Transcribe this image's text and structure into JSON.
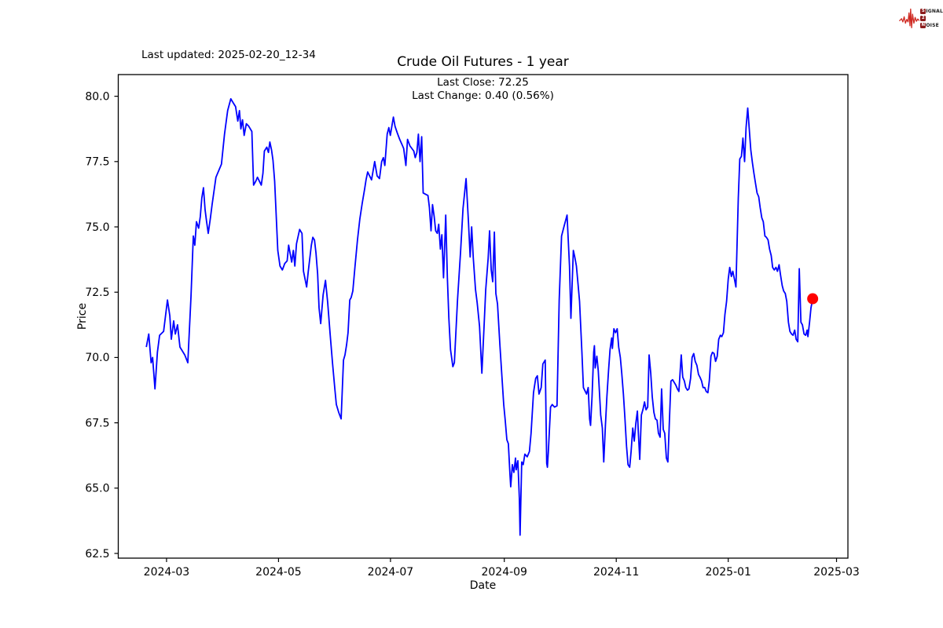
{
  "header": {
    "last_updated": "Last updated: 2025-02-20_12-34",
    "title": "Crude Oil Futures - 1 year",
    "annotation_line1": "Last Close: 72.25",
    "annotation_line2": "Last Change: 0.40 (0.56%)"
  },
  "logo": {
    "waveform_color": "#cf2a22",
    "box_color": "#8b1c1c",
    "rows": [
      {
        "box": "S",
        "rest": "IGNAL"
      },
      {
        "box": "2",
        "rest": ""
      },
      {
        "box": "N",
        "rest": "OISE"
      }
    ]
  },
  "chart_data": {
    "type": "line",
    "title": "Crude Oil Futures - 1 year",
    "xlabel": "Date",
    "ylabel": "Price",
    "grid": false,
    "line_color": "#0000ff",
    "x_unit": "days since 2024-02-19",
    "x_start_date": "2024-02-19",
    "x_tick_labels": [
      "2024-03",
      "2024-05",
      "2024-07",
      "2024-09",
      "2024-11",
      "2025-01",
      "2025-03"
    ],
    "x_tick_days": [
      11,
      72,
      133,
      195,
      256,
      317,
      376
    ],
    "y_ticks": [
      62.5,
      65.0,
      67.5,
      70.0,
      72.5,
      75.0,
      77.5,
      80.0
    ],
    "xlim_days": [
      -15.3,
      382.2
    ],
    "ylim": [
      62.32,
      80.83
    ],
    "last_close": 72.25,
    "last_change": "0.40 (0.56%)",
    "last_point": {
      "day": 363,
      "value": 72.25,
      "color": "#ff0000"
    },
    "points": [
      [
        0,
        70.4
      ],
      [
        1.3,
        70.9
      ],
      [
        2.6,
        69.8
      ],
      [
        3.4,
        70.0
      ],
      [
        4.7,
        68.8
      ],
      [
        6,
        70.2
      ],
      [
        7.2,
        70.85
      ],
      [
        9.4,
        71.0
      ],
      [
        11.5,
        72.2
      ],
      [
        12.8,
        71.6
      ],
      [
        13.6,
        70.7
      ],
      [
        14.9,
        71.4
      ],
      [
        15.8,
        70.9
      ],
      [
        17,
        71.25
      ],
      [
        18.3,
        70.4
      ],
      [
        20.9,
        70.1
      ],
      [
        22.6,
        69.8
      ],
      [
        24.3,
        72.3
      ],
      [
        25.6,
        74.65
      ],
      [
        26.4,
        74.3
      ],
      [
        27.3,
        75.2
      ],
      [
        28.5,
        74.95
      ],
      [
        29.4,
        75.4
      ],
      [
        30.2,
        76.1
      ],
      [
        31.1,
        76.5
      ],
      [
        32,
        75.65
      ],
      [
        32.8,
        75.2
      ],
      [
        33.7,
        74.75
      ],
      [
        34.9,
        75.35
      ],
      [
        35.8,
        75.85
      ],
      [
        37.9,
        76.9
      ],
      [
        40.9,
        77.4
      ],
      [
        42.6,
        78.55
      ],
      [
        44.3,
        79.45
      ],
      [
        46,
        79.9
      ],
      [
        47.3,
        79.75
      ],
      [
        48.6,
        79.6
      ],
      [
        49.8,
        79.05
      ],
      [
        50.7,
        79.45
      ],
      [
        51.5,
        78.75
      ],
      [
        52.4,
        79.1
      ],
      [
        53.3,
        78.5
      ],
      [
        54.5,
        78.95
      ],
      [
        55.8,
        78.85
      ],
      [
        57.5,
        78.65
      ],
      [
        58.4,
        76.6
      ],
      [
        59.6,
        76.75
      ],
      [
        60.5,
        76.9
      ],
      [
        62.6,
        76.6
      ],
      [
        63.5,
        77.05
      ],
      [
        64.3,
        77.9
      ],
      [
        65.6,
        78.05
      ],
      [
        66.5,
        77.85
      ],
      [
        67.3,
        78.25
      ],
      [
        68.2,
        77.95
      ],
      [
        69,
        77.55
      ],
      [
        69.9,
        76.75
      ],
      [
        71.6,
        74.1
      ],
      [
        72.8,
        73.5
      ],
      [
        74.1,
        73.35
      ],
      [
        75.4,
        73.6
      ],
      [
        76.7,
        73.7
      ],
      [
        77.5,
        74.3
      ],
      [
        79.2,
        73.65
      ],
      [
        80.1,
        74.1
      ],
      [
        80.9,
        73.5
      ],
      [
        81.8,
        74.35
      ],
      [
        83.5,
        74.9
      ],
      [
        84.8,
        74.75
      ],
      [
        85.6,
        73.3
      ],
      [
        87.3,
        72.7
      ],
      [
        88.2,
        73.3
      ],
      [
        89.9,
        74.3
      ],
      [
        90.7,
        74.6
      ],
      [
        91.6,
        74.5
      ],
      [
        92.4,
        74.0
      ],
      [
        93.3,
        73.2
      ],
      [
        94.1,
        71.9
      ],
      [
        95,
        71.3
      ],
      [
        96.3,
        72.4
      ],
      [
        97.6,
        72.95
      ],
      [
        98.8,
        72.1
      ],
      [
        100.1,
        70.9
      ],
      [
        101.4,
        69.8
      ],
      [
        102.7,
        68.8
      ],
      [
        103.5,
        68.2
      ],
      [
        104.8,
        67.9
      ],
      [
        106.1,
        67.65
      ],
      [
        107.4,
        69.9
      ],
      [
        108.2,
        70.1
      ],
      [
        109.1,
        70.5
      ],
      [
        109.9,
        70.95
      ],
      [
        110.8,
        72.2
      ],
      [
        111.6,
        72.3
      ],
      [
        112.5,
        72.55
      ],
      [
        113.7,
        73.5
      ],
      [
        115,
        74.5
      ],
      [
        116.3,
        75.3
      ],
      [
        117.6,
        75.9
      ],
      [
        118.9,
        76.45
      ],
      [
        119.7,
        76.8
      ],
      [
        120.6,
        77.1
      ],
      [
        122.7,
        76.8
      ],
      [
        124.4,
        77.5
      ],
      [
        125.7,
        76.95
      ],
      [
        127,
        76.85
      ],
      [
        128.2,
        77.5
      ],
      [
        129.1,
        77.65
      ],
      [
        129.9,
        77.35
      ],
      [
        131.2,
        78.55
      ],
      [
        132.1,
        78.8
      ],
      [
        132.9,
        78.5
      ],
      [
        134.6,
        79.2
      ],
      [
        135.5,
        78.85
      ],
      [
        136.7,
        78.6
      ],
      [
        138,
        78.35
      ],
      [
        139.3,
        78.15
      ],
      [
        140.2,
        78.0
      ],
      [
        141.4,
        77.35
      ],
      [
        142.3,
        78.35
      ],
      [
        143.6,
        78.1
      ],
      [
        145.7,
        77.9
      ],
      [
        146.5,
        77.65
      ],
      [
        147.4,
        77.85
      ],
      [
        148.2,
        78.55
      ],
      [
        149.1,
        77.5
      ],
      [
        150,
        78.45
      ],
      [
        150.8,
        76.3
      ],
      [
        153.4,
        76.2
      ],
      [
        154.2,
        75.75
      ],
      [
        155.1,
        74.85
      ],
      [
        155.9,
        75.85
      ],
      [
        156.8,
        75.4
      ],
      [
        157.6,
        74.85
      ],
      [
        158.5,
        74.75
      ],
      [
        159.3,
        75.1
      ],
      [
        160.2,
        74.15
      ],
      [
        161,
        74.7
      ],
      [
        161.9,
        73.05
      ],
      [
        162.7,
        74.65
      ],
      [
        163.1,
        75.45
      ],
      [
        164,
        73.05
      ],
      [
        164.8,
        71.5
      ],
      [
        165.7,
        70.3
      ],
      [
        167,
        69.65
      ],
      [
        167.8,
        69.8
      ],
      [
        169.5,
        72.2
      ],
      [
        171.2,
        74.05
      ],
      [
        172.5,
        75.7
      ],
      [
        174.2,
        76.85
      ],
      [
        175.5,
        75.15
      ],
      [
        176.4,
        73.85
      ],
      [
        177.2,
        75.0
      ],
      [
        178.1,
        73.8
      ],
      [
        179.3,
        72.6
      ],
      [
        180.2,
        72.1
      ],
      [
        181.5,
        71.2
      ],
      [
        182.8,
        69.4
      ],
      [
        184,
        71.2
      ],
      [
        184.9,
        72.6
      ],
      [
        186.2,
        73.8
      ],
      [
        187,
        74.85
      ],
      [
        187.9,
        73.35
      ],
      [
        188.7,
        72.9
      ],
      [
        189.6,
        74.8
      ],
      [
        190.4,
        72.45
      ],
      [
        191.3,
        72.05
      ],
      [
        192.6,
        70.5
      ],
      [
        193.4,
        69.6
      ],
      [
        194.7,
        68.2
      ],
      [
        195.5,
        67.6
      ],
      [
        196.4,
        66.85
      ],
      [
        197.2,
        66.7
      ],
      [
        198.1,
        65.5
      ],
      [
        198.5,
        65.05
      ],
      [
        199.4,
        65.9
      ],
      [
        200.2,
        65.6
      ],
      [
        201.1,
        66.15
      ],
      [
        201.5,
        65.7
      ],
      [
        202.4,
        66.05
      ],
      [
        203.2,
        64.6
      ],
      [
        203.6,
        63.2
      ],
      [
        204.5,
        66.0
      ],
      [
        205.3,
        65.9
      ],
      [
        206.2,
        66.3
      ],
      [
        207.5,
        66.2
      ],
      [
        208.7,
        66.4
      ],
      [
        209.6,
        67.1
      ],
      [
        210.9,
        68.65
      ],
      [
        212.1,
        69.2
      ],
      [
        213,
        69.3
      ],
      [
        213.9,
        68.6
      ],
      [
        215.1,
        68.85
      ],
      [
        216,
        69.75
      ],
      [
        217.3,
        69.9
      ],
      [
        218.1,
        65.95
      ],
      [
        218.5,
        65.8
      ],
      [
        219,
        66.4
      ],
      [
        220.2,
        68.1
      ],
      [
        221.1,
        68.2
      ],
      [
        222.4,
        68.1
      ],
      [
        223.7,
        68.15
      ],
      [
        224.9,
        72.2
      ],
      [
        226.2,
        74.65
      ],
      [
        227.5,
        75.0
      ],
      [
        229.2,
        75.45
      ],
      [
        230.5,
        73.5
      ],
      [
        231.3,
        71.5
      ],
      [
        232.6,
        74.1
      ],
      [
        233.4,
        73.85
      ],
      [
        234.3,
        73.5
      ],
      [
        235.2,
        72.8
      ],
      [
        236,
        72.15
      ],
      [
        237.3,
        70.2
      ],
      [
        238.1,
        68.85
      ],
      [
        239.8,
        68.6
      ],
      [
        240.7,
        68.85
      ],
      [
        241.5,
        67.65
      ],
      [
        242,
        67.4
      ],
      [
        242.8,
        68.5
      ],
      [
        243.7,
        70.2
      ],
      [
        244.1,
        70.45
      ],
      [
        244.5,
        69.6
      ],
      [
        245.4,
        70.05
      ],
      [
        246.2,
        69.5
      ],
      [
        246.7,
        68.85
      ],
      [
        247.5,
        67.8
      ],
      [
        248.4,
        67.3
      ],
      [
        249.2,
        66.0
      ],
      [
        250.1,
        67.4
      ],
      [
        250.9,
        68.5
      ],
      [
        251.8,
        69.5
      ],
      [
        252.6,
        70.3
      ],
      [
        253.5,
        70.75
      ],
      [
        253.9,
        70.35
      ],
      [
        254.7,
        71.1
      ],
      [
        255.6,
        70.95
      ],
      [
        256.5,
        71.1
      ],
      [
        257.3,
        70.4
      ],
      [
        258.2,
        70.0
      ],
      [
        259,
        69.4
      ],
      [
        259.9,
        68.6
      ],
      [
        260.7,
        67.7
      ],
      [
        261.6,
        66.6
      ],
      [
        262.4,
        65.9
      ],
      [
        263.3,
        65.8
      ],
      [
        264.1,
        66.4
      ],
      [
        265,
        67.3
      ],
      [
        265.8,
        66.8
      ],
      [
        266.7,
        67.5
      ],
      [
        267.5,
        67.95
      ],
      [
        268,
        67.2
      ],
      [
        268.8,
        66.1
      ],
      [
        269.7,
        67.8
      ],
      [
        270.5,
        68.0
      ],
      [
        271.4,
        68.3
      ],
      [
        272.2,
        68.0
      ],
      [
        273.1,
        68.1
      ],
      [
        273.9,
        70.1
      ],
      [
        274.8,
        69.4
      ],
      [
        275.6,
        68.5
      ],
      [
        276.5,
        67.9
      ],
      [
        277.3,
        67.65
      ],
      [
        278.2,
        67.6
      ],
      [
        279,
        67.1
      ],
      [
        279.9,
        66.95
      ],
      [
        280.7,
        68.8
      ],
      [
        281.6,
        67.25
      ],
      [
        282.4,
        67.1
      ],
      [
        283.3,
        66.15
      ],
      [
        284.1,
        66.0
      ],
      [
        285,
        67.7
      ],
      [
        285.8,
        69.1
      ],
      [
        286.7,
        69.15
      ],
      [
        288.4,
        68.95
      ],
      [
        289.3,
        68.8
      ],
      [
        290.1,
        68.7
      ],
      [
        291.4,
        70.1
      ],
      [
        292.2,
        69.25
      ],
      [
        293.1,
        69.1
      ],
      [
        293.9,
        68.85
      ],
      [
        294.8,
        68.75
      ],
      [
        295.6,
        68.8
      ],
      [
        296.5,
        69.2
      ],
      [
        297.3,
        70.0
      ],
      [
        298.2,
        70.15
      ],
      [
        299,
        69.85
      ],
      [
        299.9,
        69.7
      ],
      [
        300.8,
        69.35
      ],
      [
        301.6,
        69.25
      ],
      [
        302.5,
        69.1
      ],
      [
        303.3,
        68.85
      ],
      [
        304.2,
        68.85
      ],
      [
        305,
        68.7
      ],
      [
        305.9,
        68.65
      ],
      [
        306.7,
        69.1
      ],
      [
        307.6,
        70.05
      ],
      [
        308.4,
        70.2
      ],
      [
        309.3,
        70.15
      ],
      [
        310.1,
        69.85
      ],
      [
        311,
        70.05
      ],
      [
        311.8,
        70.7
      ],
      [
        312.7,
        70.85
      ],
      [
        313.5,
        70.8
      ],
      [
        314.4,
        70.95
      ],
      [
        315.2,
        71.65
      ],
      [
        316.1,
        72.15
      ],
      [
        317,
        73.0
      ],
      [
        317.8,
        73.45
      ],
      [
        318.7,
        73.1
      ],
      [
        319.5,
        73.3
      ],
      [
        320.4,
        73.0
      ],
      [
        321.2,
        72.7
      ],
      [
        322.5,
        76.1
      ],
      [
        323.3,
        77.6
      ],
      [
        324.2,
        77.7
      ],
      [
        325,
        78.4
      ],
      [
        325.9,
        77.5
      ],
      [
        326.7,
        78.8
      ],
      [
        327.6,
        79.55
      ],
      [
        329.3,
        77.95
      ],
      [
        330.2,
        77.45
      ],
      [
        331,
        77.05
      ],
      [
        331.9,
        76.65
      ],
      [
        332.7,
        76.3
      ],
      [
        333.6,
        76.15
      ],
      [
        334.4,
        75.75
      ],
      [
        335.3,
        75.35
      ],
      [
        336.1,
        75.2
      ],
      [
        337,
        74.65
      ],
      [
        337.8,
        74.6
      ],
      [
        338.7,
        74.5
      ],
      [
        339.5,
        74.15
      ],
      [
        340.4,
        73.9
      ],
      [
        341.2,
        73.45
      ],
      [
        342.1,
        73.35
      ],
      [
        343,
        73.45
      ],
      [
        343.8,
        73.3
      ],
      [
        344.7,
        73.55
      ],
      [
        345.5,
        73.15
      ],
      [
        346.4,
        72.75
      ],
      [
        347.2,
        72.55
      ],
      [
        348.1,
        72.45
      ],
      [
        348.9,
        72.15
      ],
      [
        349.8,
        71.35
      ],
      [
        350.6,
        71.0
      ],
      [
        351.5,
        70.9
      ],
      [
        352.3,
        70.85
      ],
      [
        353.2,
        71.05
      ],
      [
        354,
        70.7
      ],
      [
        354.9,
        70.6
      ],
      [
        355.7,
        73.4
      ],
      [
        356.6,
        71.35
      ],
      [
        357.4,
        71.25
      ],
      [
        358.3,
        70.9
      ],
      [
        359.2,
        70.85
      ],
      [
        360,
        71.05
      ],
      [
        360.4,
        70.8
      ],
      [
        361.3,
        71.35
      ],
      [
        362.1,
        71.9
      ],
      [
        363,
        72.25
      ]
    ]
  }
}
